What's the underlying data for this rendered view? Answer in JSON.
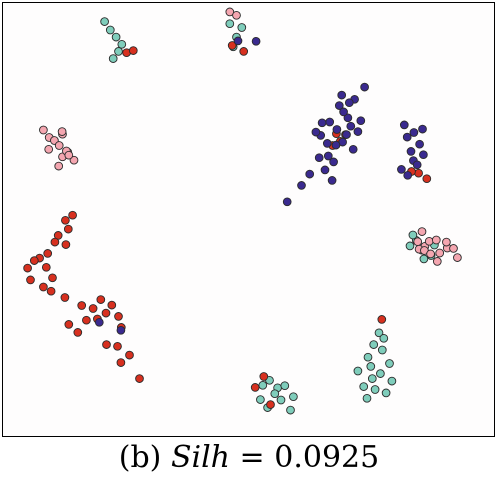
{
  "caption": {
    "label": "(b)",
    "metric": "Silh",
    "operator": "=",
    "value": "0.0925"
  },
  "colors": {
    "teal": "#7fcdbb",
    "red": "#d7301f",
    "navy": "#3a2a8f",
    "pink": "#f4a6b0",
    "outline": "#2b2b2b",
    "frame": "#000000"
  },
  "chart_data": {
    "type": "scatter",
    "axes_visible": false,
    "grid": false,
    "xlim": [
      0,
      100
    ],
    "ylim": [
      0,
      100
    ],
    "series": [
      {
        "color": "teal",
        "x": [
          20.0,
          21.2,
          22.4,
          23.6,
          22.9,
          21.8,
          46.2,
          47.6,
          46.9,
          48.7,
          77.4,
          76.3,
          78.1,
          75.1,
          79.6,
          77.7,
          76.0,
          74.2,
          78.9,
          80.1,
          75.7,
          73.0,
          76.6,
          78.4,
          74.9,
          53.1,
          54.5,
          56.2,
          55.6,
          57.7,
          52.6,
          54.1,
          56.9,
          58.9,
          59.5,
          83.9,
          86.3,
          88.3,
          89.0,
          85.2,
          86.8,
          84.5
        ],
        "y": [
          97.0,
          95.0,
          93.3,
          91.6,
          89.9,
          88.2,
          96.5,
          93.3,
          91.0,
          95.6,
          22.9,
          20.1,
          18.8,
          17.1,
          15.6,
          13.2,
          12.0,
          10.1,
          8.6,
          11.4,
          14.9,
          13.8,
          9.4,
          21.6,
          7.3,
          10.4,
          11.6,
          9.8,
          8.4,
          10.3,
          7.0,
          5.1,
          6.9,
          4.5,
          7.7,
          43.6,
          42.6,
          41.3,
          43.8,
          44.9,
          40.5,
          46.2
        ]
      },
      {
        "color": "red",
        "x": [
          24.6,
          26.0,
          46.7,
          49.1,
          11.8,
          13.3,
          12.4,
          10.3,
          9.6,
          11.9,
          8.1,
          7.8,
          6.4,
          5.3,
          3.9,
          9.1,
          4.5,
          7.2,
          8.8,
          15.2,
          17.6,
          19.2,
          21.5,
          20.3,
          22.9,
          18.5,
          23.5,
          14.4,
          16.2,
          12.5,
          20.4,
          22.7,
          25.2,
          23.4,
          27.3,
          11.7,
          68.5,
          70.4,
          69.3,
          67.7,
          85.7,
          87.4,
          84.2,
          51.5,
          53.3,
          54.7,
          78.0
        ],
        "y": [
          89.6,
          90.1,
          91.3,
          89.9,
          49.7,
          50.9,
          47.6,
          46.1,
          44.5,
          43.9,
          41.8,
          38.5,
          40.7,
          40.1,
          38.3,
          36.0,
          35.5,
          33.8,
          32.8,
          29.4,
          28.7,
          30.8,
          29.5,
          27.6,
          26.8,
          26.2,
          24.2,
          23.0,
          25.9,
          24.9,
          20.1,
          19.7,
          17.6,
          15.8,
          12.0,
          31.3,
          70.3,
          70.1,
          68.5,
          67.5,
          60.9,
          59.6,
          61.3,
          9.9,
          12.5,
          5.8,
          26.1
        ]
      },
      {
        "color": "navy",
        "x": [
          51.7,
          74.4,
          72.3,
          73.6,
          71.2,
          70.9,
          69.1,
          68.6,
          70.6,
          72.0,
          69.8,
          67.9,
          66.1,
          66.8,
          68.4,
          67.1,
          65.2,
          70.0,
          71.5,
          73.0,
          69.6,
          66.6,
          64.9,
          64.2,
          65.5,
          67.6,
          62.9,
          61.2,
          58.2,
          82.7,
          84.7,
          83.3,
          86.5,
          85.9,
          84.6,
          86.7,
          84.1,
          85.4,
          83.4,
          82.1,
          18.9,
          23.4,
          47.9
        ],
        "y": [
          92.3,
          81.4,
          78.5,
          73.4,
          77.7,
          74.1,
          77.0,
          71.3,
          70.1,
          66.6,
          68.3,
          63.6,
          61.7,
          65.0,
          67.6,
          73.1,
          69.9,
          75.5,
          72.1,
          70.8,
          79.5,
          68.0,
          64.6,
          70.7,
          72.9,
          59.2,
          60.7,
          58.0,
          54.1,
          72.4,
          70.6,
          69.5,
          71.4,
          67.8,
          63.9,
          65.3,
          66.1,
          62.9,
          60.4,
          61.8,
          25.4,
          23.5,
          92.4
        ]
      },
      {
        "color": "pink",
        "x": [
          46.2,
          47.6,
          7.2,
          8.4,
          9.5,
          10.5,
          11.2,
          12.3,
          13.6,
          10.4,
          11.2,
          12.0,
          8.3,
          85.5,
          87.0,
          87.9,
          90.1,
          91.7,
          89.4,
          93.8,
          93.0,
          91.5,
          85.8,
          86.9,
          88.2,
          89.6,
          86.4,
          11.1,
          12.5
        ],
        "y": [
          99.3,
          98.5,
          71.2,
          69.4,
          68.7,
          67.5,
          64.8,
          65.9,
          64.0,
          62.6,
          70.2,
          66.2,
          66.6,
          44.6,
          43.5,
          44.7,
          41.9,
          43.1,
          45.0,
          40.8,
          43.0,
          44.5,
          42.8,
          42.5,
          41.7,
          39.9,
          47.0,
          70.8,
          65.2
        ]
      }
    ]
  }
}
